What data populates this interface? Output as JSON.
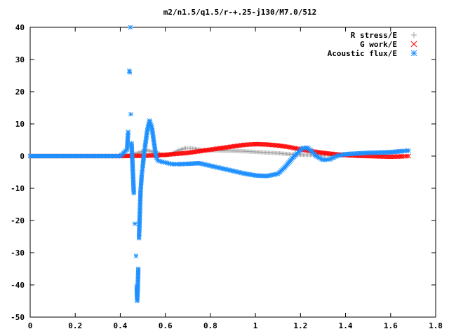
{
  "chart_data": {
    "type": "scatter",
    "title": "m2/n1.5/q1.5/r-+.25-j130/M7.0/512",
    "xlabel": "",
    "ylabel": "",
    "xlim": [
      0,
      1.8
    ],
    "ylim": [
      -50,
      40
    ],
    "xticks": [
      "0",
      "0.2",
      "0.4",
      "0.6",
      "0.8",
      "1",
      "1.2",
      "1.4",
      "1.6",
      "1.8"
    ],
    "yticks": [
      "40",
      "30",
      "20",
      "10",
      "0",
      "-10",
      "-20",
      "-30",
      "-40",
      "-50"
    ],
    "grid": false,
    "legend_position": "top-right",
    "series": [
      {
        "name": "R stress/E",
        "marker": "plus",
        "color": "#a0a0a0",
        "points": [
          [
            0.0,
            0
          ],
          [
            0.1,
            0
          ],
          [
            0.2,
            0
          ],
          [
            0.3,
            0
          ],
          [
            0.4,
            0
          ],
          [
            0.44,
            0.2
          ],
          [
            0.47,
            0.8
          ],
          [
            0.5,
            1.5
          ],
          [
            0.52,
            1.8
          ],
          [
            0.55,
            1.2
          ],
          [
            0.58,
            0.6
          ],
          [
            0.6,
            0.2
          ],
          [
            0.63,
            0.8
          ],
          [
            0.66,
            1.8
          ],
          [
            0.69,
            2.5
          ],
          [
            0.72,
            2.4
          ],
          [
            0.76,
            2.0
          ],
          [
            0.8,
            1.8
          ],
          [
            0.85,
            1.7
          ],
          [
            0.9,
            1.6
          ],
          [
            0.95,
            1.5
          ],
          [
            1.0,
            1.3
          ],
          [
            1.05,
            1.1
          ],
          [
            1.1,
            0.9
          ],
          [
            1.15,
            0.6
          ],
          [
            1.2,
            0.4
          ],
          [
            1.25,
            0.3
          ],
          [
            1.3,
            0.3
          ],
          [
            1.35,
            0.4
          ],
          [
            1.4,
            0.5
          ],
          [
            1.45,
            0.7
          ],
          [
            1.5,
            0.9
          ],
          [
            1.55,
            1.1
          ],
          [
            1.6,
            1.3
          ],
          [
            1.65,
            1.6
          ],
          [
            1.67,
            1.8
          ]
        ]
      },
      {
        "name": "G work/E",
        "marker": "cross",
        "color": "#ff0000",
        "points": [
          [
            0.0,
            0
          ],
          [
            0.1,
            0
          ],
          [
            0.2,
            0
          ],
          [
            0.3,
            0
          ],
          [
            0.4,
            0
          ],
          [
            0.5,
            0.1
          ],
          [
            0.55,
            0.2
          ],
          [
            0.6,
            0.4
          ],
          [
            0.65,
            0.7
          ],
          [
            0.7,
            1.0
          ],
          [
            0.75,
            1.5
          ],
          [
            0.8,
            2.0
          ],
          [
            0.85,
            2.5
          ],
          [
            0.9,
            3.0
          ],
          [
            0.95,
            3.5
          ],
          [
            1.0,
            3.7
          ],
          [
            1.05,
            3.6
          ],
          [
            1.1,
            3.3
          ],
          [
            1.15,
            2.8
          ],
          [
            1.2,
            2.1
          ],
          [
            1.25,
            1.5
          ],
          [
            1.3,
            1.0
          ],
          [
            1.35,
            0.6
          ],
          [
            1.4,
            0.3
          ],
          [
            1.45,
            0.1
          ],
          [
            1.5,
            0.0
          ],
          [
            1.55,
            -0.1
          ],
          [
            1.6,
            -0.2
          ],
          [
            1.65,
            -0.1
          ],
          [
            1.68,
            0.0
          ]
        ]
      },
      {
        "name": "Acoustic flux/E",
        "marker": "star",
        "color": "#1e90ff",
        "points": [
          [
            0.0,
            0
          ],
          [
            0.1,
            0
          ],
          [
            0.2,
            0
          ],
          [
            0.3,
            0
          ],
          [
            0.4,
            0
          ],
          [
            0.43,
            2
          ],
          [
            0.435,
            7.5
          ],
          [
            0.44,
            26.5
          ],
          [
            0.442,
            26
          ],
          [
            0.445,
            40
          ],
          [
            0.447,
            13
          ],
          [
            0.45,
            4
          ],
          [
            0.455,
            -3.5
          ],
          [
            0.46,
            -11.5
          ],
          [
            0.465,
            -21
          ],
          [
            0.47,
            -31
          ],
          [
            0.473,
            -40.5
          ],
          [
            0.475,
            -45
          ],
          [
            0.477,
            -42.5
          ],
          [
            0.48,
            -35
          ],
          [
            0.483,
            -25.5
          ],
          [
            0.487,
            -17.5
          ],
          [
            0.49,
            -11
          ],
          [
            0.495,
            -6
          ],
          [
            0.5,
            -3
          ],
          [
            0.505,
            0.5
          ],
          [
            0.51,
            3
          ],
          [
            0.52,
            8
          ],
          [
            0.53,
            11
          ],
          [
            0.54,
            9
          ],
          [
            0.55,
            4
          ],
          [
            0.56,
            -0.5
          ],
          [
            0.57,
            -1.5
          ],
          [
            0.6,
            -2.0
          ],
          [
            0.63,
            -2.5
          ],
          [
            0.66,
            -2.5
          ],
          [
            0.7,
            -2.4
          ],
          [
            0.75,
            -2.2
          ],
          [
            0.8,
            -3.0
          ],
          [
            0.85,
            -3.8
          ],
          [
            0.9,
            -4.6
          ],
          [
            0.95,
            -5.4
          ],
          [
            1.0,
            -6.0
          ],
          [
            1.05,
            -6.2
          ],
          [
            1.1,
            -5.5
          ],
          [
            1.13,
            -3.5
          ],
          [
            1.16,
            -1.0
          ],
          [
            1.19,
            1.2
          ],
          [
            1.21,
            2.5
          ],
          [
            1.23,
            2.6
          ],
          [
            1.25,
            1.5
          ],
          [
            1.27,
            0.0
          ],
          [
            1.3,
            -1.2
          ],
          [
            1.33,
            -1.0
          ],
          [
            1.36,
            0.0
          ],
          [
            1.4,
            0.6
          ],
          [
            1.45,
            0.8
          ],
          [
            1.5,
            1.0
          ],
          [
            1.55,
            1.1
          ],
          [
            1.6,
            1.2
          ],
          [
            1.65,
            1.5
          ],
          [
            1.68,
            1.7
          ]
        ]
      }
    ]
  }
}
